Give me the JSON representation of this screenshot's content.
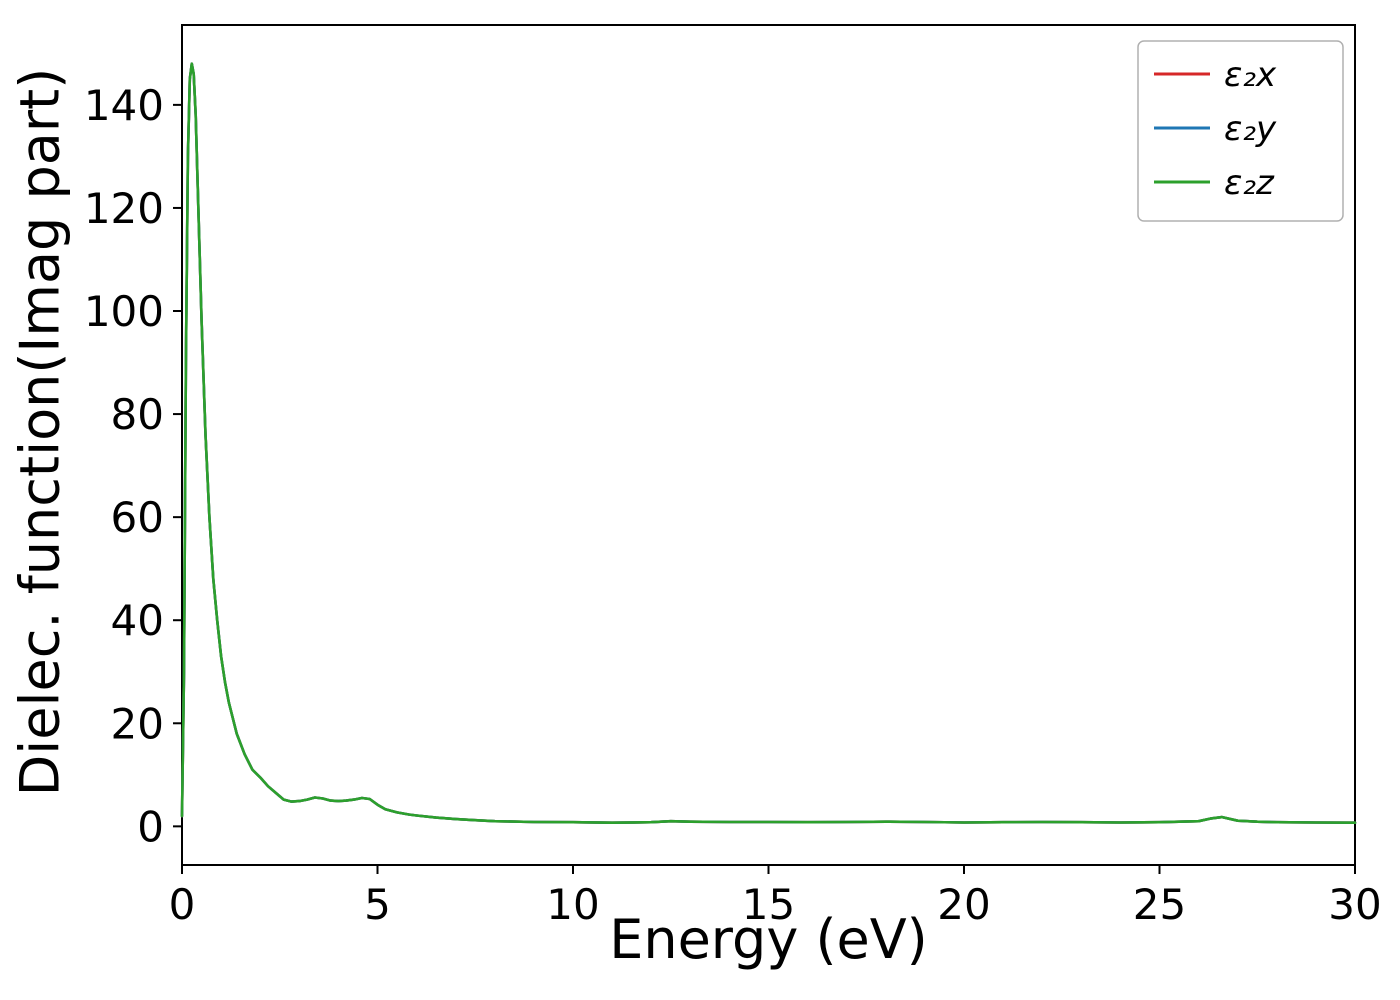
{
  "figure": {
    "background": "#ffffff"
  },
  "chart_data": {
    "type": "line",
    "title": "",
    "xlabel": "Energy (eV)",
    "ylabel": "Dielec. function(Imag part)",
    "xlim": [
      0,
      30
    ],
    "ylim": [
      -7.5,
      155.5
    ],
    "xticks": [
      0,
      5,
      10,
      15,
      20,
      25,
      30
    ],
    "yticks": [
      0,
      20,
      40,
      60,
      80,
      100,
      120,
      140
    ],
    "grid": false,
    "legend_position": "upper right",
    "x": [
      0.0,
      0.05,
      0.1,
      0.15,
      0.2,
      0.25,
      0.3,
      0.35,
      0.4,
      0.5,
      0.6,
      0.7,
      0.8,
      0.9,
      1.0,
      1.1,
      1.2,
      1.4,
      1.6,
      1.8,
      2.0,
      2.2,
      2.4,
      2.6,
      2.8,
      3.0,
      3.2,
      3.4,
      3.6,
      3.8,
      4.0,
      4.2,
      4.4,
      4.6,
      4.8,
      5.0,
      5.2,
      5.5,
      5.8,
      6.0,
      6.5,
      7.0,
      7.5,
      8.0,
      9.0,
      10.0,
      11.0,
      12.0,
      12.5,
      13.0,
      14.0,
      15.0,
      16.0,
      17.0,
      18.0,
      19.0,
      20.0,
      21.0,
      22.0,
      23.0,
      24.0,
      25.0,
      25.5,
      26.0,
      26.3,
      26.6,
      27.0,
      27.5,
      28.0,
      29.0,
      30.0
    ],
    "series": [
      {
        "id": "e2x",
        "name": "ε₂x",
        "color": "#d62728",
        "values": [
          2,
          30,
          90,
          130,
          145,
          148,
          146,
          138,
          125,
          98,
          76,
          60,
          48,
          40,
          33,
          28,
          24,
          18,
          14,
          11,
          9.5,
          7.8,
          6.5,
          5.2,
          4.8,
          4.9,
          5.2,
          5.6,
          5.4,
          5.0,
          4.9,
          5.0,
          5.2,
          5.5,
          5.3,
          4.2,
          3.3,
          2.7,
          2.3,
          2.1,
          1.7,
          1.4,
          1.2,
          1.0,
          0.85,
          0.8,
          0.7,
          0.8,
          1.0,
          0.9,
          0.85,
          0.85,
          0.8,
          0.85,
          0.9,
          0.85,
          0.75,
          0.8,
          0.85,
          0.8,
          0.75,
          0.8,
          0.9,
          1.0,
          1.5,
          1.8,
          1.1,
          0.9,
          0.8,
          0.75,
          0.7
        ]
      },
      {
        "id": "e2y",
        "name": "ε₂y",
        "color": "#1f77b4",
        "values": [
          2,
          30,
          90,
          130,
          145,
          148,
          146,
          138,
          125,
          98,
          76,
          60,
          48,
          40,
          33,
          28,
          24,
          18,
          14,
          11,
          9.5,
          7.8,
          6.5,
          5.2,
          4.8,
          4.9,
          5.2,
          5.6,
          5.4,
          5.0,
          4.9,
          5.0,
          5.2,
          5.5,
          5.3,
          4.2,
          3.3,
          2.7,
          2.3,
          2.1,
          1.7,
          1.4,
          1.2,
          1.0,
          0.85,
          0.8,
          0.7,
          0.8,
          1.0,
          0.9,
          0.85,
          0.85,
          0.8,
          0.85,
          0.9,
          0.85,
          0.75,
          0.8,
          0.85,
          0.8,
          0.75,
          0.8,
          0.9,
          1.0,
          1.5,
          1.8,
          1.1,
          0.9,
          0.8,
          0.75,
          0.7
        ]
      },
      {
        "id": "e2z",
        "name": "ε₂z",
        "color": "#2ca02c",
        "values": [
          2,
          30,
          90,
          130,
          145,
          148,
          146,
          138,
          125,
          98,
          76,
          60,
          48,
          40,
          33,
          28,
          24,
          18,
          14,
          11,
          9.5,
          7.8,
          6.5,
          5.2,
          4.8,
          4.9,
          5.2,
          5.6,
          5.4,
          5.0,
          4.9,
          5.0,
          5.2,
          5.5,
          5.3,
          4.2,
          3.3,
          2.7,
          2.3,
          2.1,
          1.7,
          1.4,
          1.2,
          1.0,
          0.85,
          0.8,
          0.7,
          0.8,
          1.0,
          0.9,
          0.85,
          0.85,
          0.8,
          0.85,
          0.9,
          0.85,
          0.75,
          0.8,
          0.85,
          0.8,
          0.75,
          0.8,
          0.9,
          1.0,
          1.5,
          1.8,
          1.1,
          0.9,
          0.8,
          0.75,
          0.7
        ]
      }
    ],
    "axis_color": "#000000",
    "legend_border_color": "#b0b0b0"
  }
}
